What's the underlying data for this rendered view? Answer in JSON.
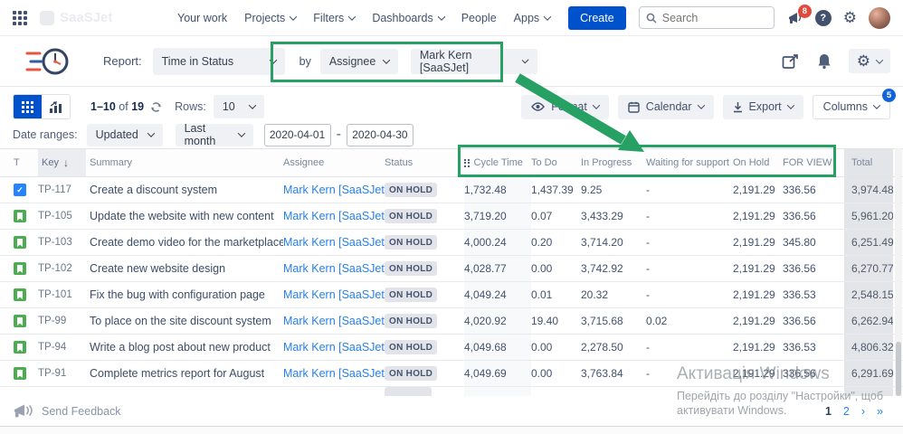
{
  "colors": {
    "accent_blue": "#0052cc",
    "annotation_green": "#27a163",
    "link_blue": "#2680eb",
    "notification_red": "#e2483d",
    "lozenge_bg": "#e2e4e9"
  },
  "icons": {
    "sort_desc": "↓",
    "gear": "⚙",
    "task_check": "✓",
    "help": "?"
  },
  "nav": {
    "logo_ghost": "SaaSJet",
    "items": [
      {
        "label": "Your work",
        "dropdown": false
      },
      {
        "label": "Projects",
        "dropdown": true
      },
      {
        "label": "Filters",
        "dropdown": true
      },
      {
        "label": "Dashboards",
        "dropdown": true
      },
      {
        "label": "People",
        "dropdown": false
      },
      {
        "label": "Apps",
        "dropdown": true
      }
    ],
    "create_label": "Create",
    "search_placeholder": "Search",
    "notification_count": "8"
  },
  "report_bar": {
    "report_label": "Report:",
    "report_value": "Time in Status",
    "by_label": "by",
    "group_by_value": "Assignee",
    "user_value": "Mark Kern [SaaSJet]"
  },
  "toolbar": {
    "range_from_to": "1–10",
    "range_of": "of",
    "range_total": "19",
    "rows_label": "Rows:",
    "rows_value": "10",
    "format_label": "Format",
    "calendar_label": "Calendar",
    "export_label": "Export",
    "columns_label": "Columns",
    "columns_badge": "5"
  },
  "date_filters": {
    "label": "Date ranges:",
    "field_value": "Updated",
    "preset_value": "Last month",
    "from_value": "2020-04-01",
    "separator": "-",
    "to_value": "2020-04-30"
  },
  "table": {
    "columns": [
      "T",
      "Key",
      "Summary",
      "Assignee",
      "Status",
      "Cycle Time",
      "To Do",
      "In Progress",
      "Waiting for support",
      "On Hold",
      "FOR VIEW",
      "Total"
    ],
    "rows": [
      {
        "type": "task",
        "key": "TP-117",
        "summary": "Create a discount system",
        "assignee": "Mark Kern [SaaSJet]",
        "status": "ON HOLD",
        "cycle_time": "1,732.48",
        "to_do": "1,437.39",
        "in_progress": "9.25",
        "waiting_for_support": "-",
        "on_hold": "2,191.29",
        "for_view": "336.56",
        "total": "3,974.48"
      },
      {
        "type": "story",
        "key": "TP-105",
        "summary": "Update the website with new content",
        "assignee": "Mark Kern [SaaSJet]",
        "status": "ON HOLD",
        "cycle_time": "3,719.20",
        "to_do": "0.07",
        "in_progress": "3,433.29",
        "waiting_for_support": "-",
        "on_hold": "2,191.29",
        "for_view": "336.56",
        "total": "5,961.20"
      },
      {
        "type": "story",
        "key": "TP-103",
        "summary": "Create demo video for the marketplace",
        "assignee": "Mark Kern [SaaSJet]",
        "status": "ON HOLD",
        "cycle_time": "4,000.24",
        "to_do": "0.20",
        "in_progress": "3,714.20",
        "waiting_for_support": "-",
        "on_hold": "2,191.29",
        "for_view": "345.80",
        "total": "6,251.49"
      },
      {
        "type": "story",
        "key": "TP-102",
        "summary": "Create new website design",
        "assignee": "Mark Kern [SaaSJet]",
        "status": "ON HOLD",
        "cycle_time": "4,028.77",
        "to_do": "0.00",
        "in_progress": "3,742.92",
        "waiting_for_support": "-",
        "on_hold": "2,191.29",
        "for_view": "336.56",
        "total": "6,270.77"
      },
      {
        "type": "story",
        "key": "TP-101",
        "summary": "Fix the bug with configuration page",
        "assignee": "Mark Kern [SaaSJet]",
        "status": "ON HOLD",
        "cycle_time": "4,049.24",
        "to_do": "0.01",
        "in_progress": "20.32",
        "waiting_for_support": "-",
        "on_hold": "2,191.29",
        "for_view": "336.53",
        "total": "2,548.15"
      },
      {
        "type": "story",
        "key": "TP-99",
        "summary": "To place on the site discount system",
        "assignee": "Mark Kern [SaaSJet]",
        "status": "ON HOLD",
        "cycle_time": "4,020.92",
        "to_do": "19.40",
        "in_progress": "3,715.68",
        "waiting_for_support": "0.02",
        "on_hold": "2,191.29",
        "for_view": "336.56",
        "total": "6,262.94"
      },
      {
        "type": "story",
        "key": "TP-94",
        "summary": "Write a blog post about new product",
        "assignee": "Mark Kern [SaaSJet]",
        "status": "ON HOLD",
        "cycle_time": "4,049.68",
        "to_do": "0.00",
        "in_progress": "2,278.50",
        "waiting_for_support": "-",
        "on_hold": "2,191.29",
        "for_view": "336.53",
        "total": "4,806.32"
      },
      {
        "type": "story",
        "key": "TP-91",
        "summary": "Complete metrics report for August",
        "assignee": "Mark Kern [SaaSJet]",
        "status": "ON HOLD",
        "cycle_time": "4,049.69",
        "to_do": "0.00",
        "in_progress": "3,763.84",
        "waiting_for_support": "-",
        "on_hold": "2,191.29",
        "for_view": "336.56",
        "total": "6,291.69"
      }
    ]
  },
  "footer": {
    "feedback_label": "Send Feedback",
    "pagination": {
      "current": "1",
      "page2": "2",
      "next": "›",
      "last": "»"
    }
  },
  "watermark": {
    "line1": "Активація Windows",
    "line2": "Перейдіть до розділу \"Настройки\", щоб",
    "line3": "активувати Windows."
  }
}
